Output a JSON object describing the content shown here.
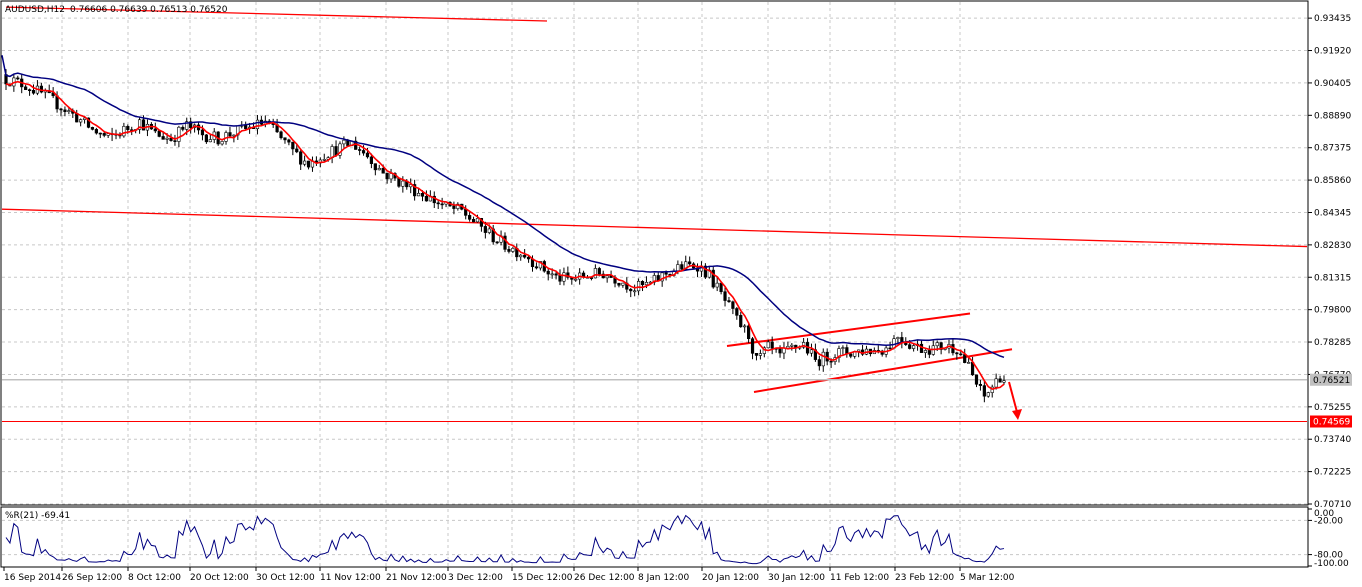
{
  "header": {
    "symbol_tf": "AUDUSD,H12",
    "ohlc": "0.76606 0.76639 0.76513 0.76520"
  },
  "chart_data": [
    {
      "type": "candlestick",
      "title": "AUDUSD,H12",
      "price_axis_labels": [
        "0.93435",
        "0.91920",
        "0.90405",
        "0.88890",
        "0.87375",
        "0.85860",
        "0.84345",
        "0.82830",
        "0.81315",
        "0.79800",
        "0.78285",
        "0.76770",
        "0.75255",
        "0.73740",
        "0.72225",
        "0.70710"
      ],
      "ylim": [
        0.7071,
        0.9419
      ],
      "time_axis_labels": [
        "16 Sep 2014",
        "26 Sep 12:00",
        "8 Oct 12:00",
        "20 Oct 12:00",
        "30 Oct 12:00",
        "11 Nov 12:00",
        "21 Nov 12:00",
        "3 Dec 12:00",
        "15 Dec 12:00",
        "26 Dec 12:00",
        "8 Jan 12:00",
        "20 Jan 12:00",
        "30 Jan 12:00",
        "11 Feb 12:00",
        "23 Feb 12:00",
        "5 Mar 12:00"
      ],
      "current_price": "0.76521",
      "marked_level": "0.74569",
      "price_path": [
        [
          0,
          0.906
        ],
        [
          5,
          0.903
        ],
        [
          10,
          0.898
        ],
        [
          14,
          0.893
        ],
        [
          18,
          0.888
        ],
        [
          22,
          0.882
        ],
        [
          26,
          0.878
        ],
        [
          30,
          0.882
        ],
        [
          34,
          0.886
        ],
        [
          38,
          0.88
        ],
        [
          42,
          0.878
        ],
        [
          46,
          0.884
        ],
        [
          50,
          0.88
        ],
        [
          54,
          0.878
        ],
        [
          58,
          0.881
        ],
        [
          62,
          0.883
        ],
        [
          66,
          0.886
        ],
        [
          69,
          0.88
        ],
        [
          73,
          0.872
        ],
        [
          77,
          0.866
        ],
        [
          80,
          0.87
        ],
        [
          84,
          0.873
        ],
        [
          88,
          0.876
        ],
        [
          92,
          0.87
        ],
        [
          96,
          0.862
        ],
        [
          100,
          0.858
        ],
        [
          104,
          0.854
        ],
        [
          108,
          0.85
        ],
        [
          112,
          0.846
        ],
        [
          116,
          0.844
        ],
        [
          120,
          0.838
        ],
        [
          124,
          0.832
        ],
        [
          128,
          0.827
        ],
        [
          132,
          0.824
        ],
        [
          136,
          0.818
        ],
        [
          140,
          0.813
        ],
        [
          144,
          0.812
        ],
        [
          148,
          0.814
        ],
        [
          152,
          0.815
        ],
        [
          156,
          0.812
        ],
        [
          160,
          0.808
        ],
        [
          164,
          0.81
        ],
        [
          168,
          0.815
        ],
        [
          172,
          0.818
        ],
        [
          176,
          0.819
        ],
        [
          179,
          0.814
        ],
        [
          183,
          0.802
        ],
        [
          186,
          0.793
        ],
        [
          189,
          0.786
        ],
        [
          191,
          0.774
        ],
        [
          194,
          0.78
        ],
        [
          197,
          0.776
        ],
        [
          200,
          0.78
        ],
        [
          203,
          0.782
        ],
        [
          206,
          0.774
        ],
        [
          209,
          0.776
        ],
        [
          212,
          0.778
        ],
        [
          215,
          0.778
        ],
        [
          218,
          0.779
        ],
        [
          221,
          0.779
        ],
        [
          224,
          0.78
        ],
        [
          227,
          0.786
        ],
        [
          230,
          0.782
        ],
        [
          233,
          0.78
        ],
        [
          236,
          0.78
        ],
        [
          239,
          0.781
        ],
        [
          242,
          0.78
        ],
        [
          245,
          0.771
        ],
        [
          247,
          0.763
        ],
        [
          249,
          0.757
        ],
        [
          251,
          0.762
        ],
        [
          253,
          0.767
        ],
        [
          254,
          0.7652
        ]
      ],
      "series": [
        {
          "name": "",
          "color": "#ff0000"
        },
        {
          "name": "",
          "color": "#000080"
        }
      ],
      "price_annotation_lines": {
        "color": "#ff0000"
      }
    },
    {
      "type": "line",
      "title": "%R(21) -69.41",
      "axis_labels": [
        "0.00",
        "-20.00",
        "-80.00",
        "-100.00"
      ],
      "ylim": [
        -100,
        0
      ],
      "series": [
        {
          "name": "%R(21)",
          "color": "#000080",
          "last": -69.41
        }
      ]
    }
  ]
}
